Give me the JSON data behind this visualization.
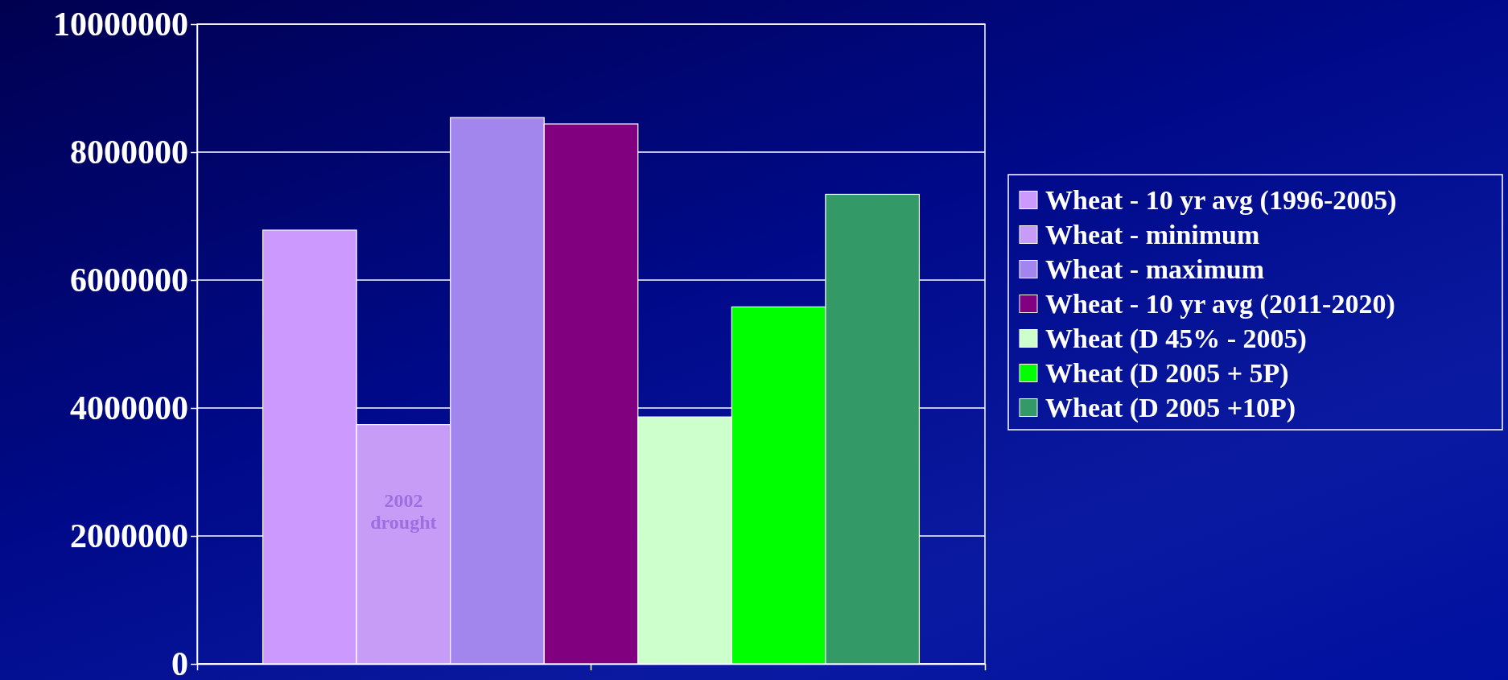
{
  "chart_data": {
    "type": "bar",
    "categories": [
      null
    ],
    "series": [
      {
        "name": "Wheat - 10 yr avg (1996-2005)",
        "color": "#cc99ff",
        "values": [
          6780000
        ]
      },
      {
        "name": "Wheat - minimum",
        "color": "#c79cf7",
        "values": [
          3740000
        ]
      },
      {
        "name": "Wheat - maximum",
        "color": "#a385ee",
        "values": [
          8540000
        ]
      },
      {
        "name": "Wheat - 10 yr avg (2011-2020)",
        "color": "#800080",
        "values": [
          8440000
        ]
      },
      {
        "name": "Wheat (D 45% - 2005)",
        "color": "#ccffcc",
        "values": [
          3860000
        ]
      },
      {
        "name": "Wheat (D 2005 + 5P)",
        "color": "#00ff00",
        "values": [
          5580000
        ]
      },
      {
        "name": "Wheat (D 2005 +10P)",
        "color": "#339966",
        "values": [
          7340000
        ]
      }
    ],
    "ylim": [
      0,
      10000000
    ],
    "yticks": [
      0,
      2000000,
      4000000,
      6000000,
      8000000,
      10000000
    ],
    "grid": "y",
    "legend": "right",
    "annotations": [
      "2002 drought"
    ]
  }
}
